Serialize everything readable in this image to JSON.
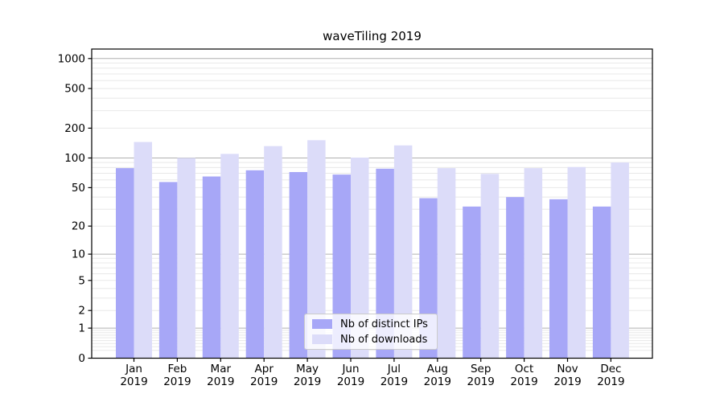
{
  "chart_data": {
    "type": "bar",
    "title": "waveTiling 2019",
    "categories": [
      "Jan",
      "Feb",
      "Mar",
      "Apr",
      "May",
      "Jun",
      "Jul",
      "Aug",
      "Sep",
      "Oct",
      "Nov",
      "Dec"
    ],
    "year": "2019",
    "series": [
      {
        "name": "Nb of distinct IPs",
        "color": "#a7a7f7",
        "values": [
          79,
          57,
          65,
          75,
          72,
          68,
          78,
          39,
          32,
          40,
          38,
          32
        ]
      },
      {
        "name": "Nb of downloads",
        "color": "#dcdcf9",
        "values": [
          145,
          100,
          110,
          132,
          151,
          101,
          134,
          79,
          69,
          79,
          81,
          90
        ]
      }
    ],
    "y_ticks": [
      0,
      1,
      2,
      5,
      10,
      20,
      50,
      100,
      200,
      500,
      1000
    ],
    "y_scale": "log1p",
    "ylim": [
      0,
      1230
    ],
    "xlabel": "",
    "ylabel": "",
    "grid": true,
    "legend_position": "lower-center"
  },
  "colors": {
    "background": "#ffffff",
    "bar_distinct_ips": "#a7a7f7",
    "bar_downloads": "#dcdcf9",
    "grid_major": "#b0b0b0",
    "grid_minor": "#e8e8e8",
    "axis": "#000000",
    "legend_border": "#cbcbcb"
  }
}
